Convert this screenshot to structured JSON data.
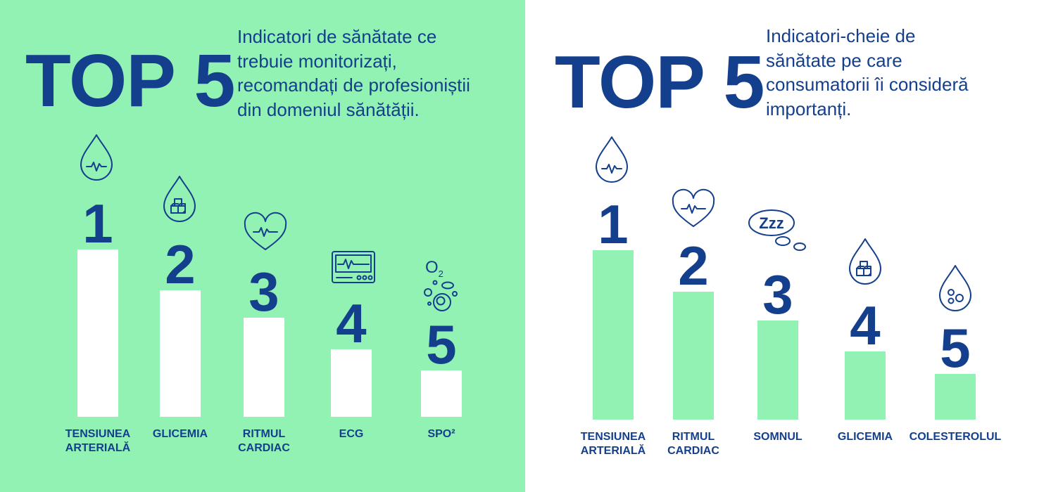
{
  "chart_data": [
    {
      "type": "bar",
      "panel": "left",
      "title": "TOP 5",
      "subtitle": "Indicatori de sănătate ce\ntrebuie monitorizați,\nrecomandați de profesioniștii\ndin domeniul sănătății.",
      "categories": [
        "TENSIUNEA\nARTERIALĂ",
        "GLICEMIA",
        "RITMUL\nCARDIAC",
        "ECG",
        "SpO²"
      ],
      "ranks": [
        "1",
        "2",
        "3",
        "4",
        "5"
      ],
      "values": [
        5,
        4,
        3,
        2,
        1
      ],
      "icons": [
        "blood-drop-pulse-icon",
        "blood-drop-sugar-cubes-icon",
        "heart-pulse-icon",
        "ecg-monitor-icon",
        "oxygen-bubbles-icon"
      ],
      "icon_text": {
        "o2": "O",
        "o2_sub": "2"
      },
      "bar_color": "#ffffff",
      "background": "#92f2b3"
    },
    {
      "type": "bar",
      "panel": "right",
      "title": "TOP 5",
      "subtitle": "Indicatori-cheie de\nsănătate pe care\nconsumatorii îi consideră\nimportanți.",
      "categories": [
        "TENSIUNEA\nARTERIALĂ",
        "RITMUL\nCARDIAC",
        "SOMNUL",
        "GLICEMIA",
        "COLESTEROLUL"
      ],
      "ranks": [
        "1",
        "2",
        "3",
        "4",
        "5"
      ],
      "values": [
        5,
        4,
        3,
        2,
        1
      ],
      "icons": [
        "blood-drop-pulse-icon",
        "heart-pulse-icon",
        "sleep-zzz-icon",
        "blood-drop-sugar-cubes-icon",
        "blood-drop-cholesterol-icon"
      ],
      "icon_text": {
        "zzz": "Zzz"
      },
      "bar_color": "#92f2b3",
      "background": "#ffffff"
    }
  ],
  "colors": {
    "navy": "#143f8c",
    "mint": "#92f2b3",
    "white": "#ffffff"
  }
}
